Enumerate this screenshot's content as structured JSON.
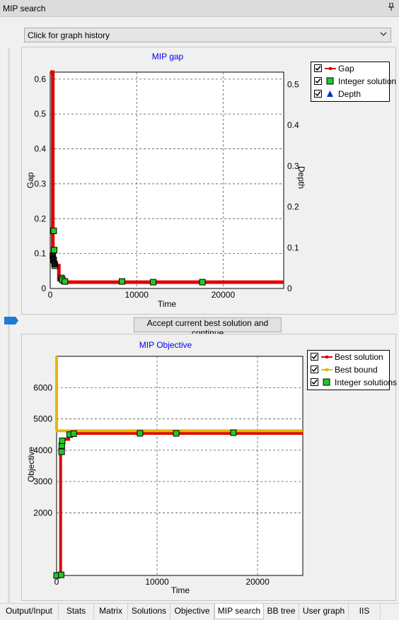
{
  "window": {
    "title": "MIP search",
    "pin_icon": "pin-icon"
  },
  "history_dropdown": {
    "label": "Click for graph history"
  },
  "accept_button": {
    "label": "Accept current best solution and continue"
  },
  "gap_chart": {
    "legend": [
      {
        "label": "Gap",
        "color": "#e00000",
        "symbol": "line-dot"
      },
      {
        "label": "Integer solution",
        "color": "#22c922",
        "symbol": "square"
      },
      {
        "label": "Depth",
        "color": "#0033cc",
        "symbol": "triangle"
      }
    ]
  },
  "objective_chart": {
    "legend": [
      {
        "label": "Best solution",
        "color": "#e00000",
        "symbol": "line-dot"
      },
      {
        "label": "Best bound",
        "color": "#e6b800",
        "symbol": "line-dot"
      },
      {
        "label": "Integer solutions",
        "color": "#22c922",
        "symbol": "square"
      }
    ]
  },
  "chart_data": [
    {
      "type": "line",
      "title": "MIP gap",
      "xlabel": "Time",
      "ylabel": "Gap",
      "y2label": "Depth",
      "xlim": [
        0,
        27000
      ],
      "ylim": [
        0,
        0.62
      ],
      "y2lim": [
        0,
        0.53
      ],
      "xticks": [
        "0",
        "10000",
        "20000"
      ],
      "xtick_values": [
        0,
        10000,
        20000
      ],
      "yticks": [
        "0",
        "0.1",
        "0.2",
        "0.3",
        "0.4",
        "0.5",
        "0.6"
      ],
      "ytick_values": [
        0,
        0.1,
        0.2,
        0.3,
        0.4,
        0.5,
        0.6
      ],
      "y2ticks": [
        "0",
        "0.1",
        "0.2",
        "0.3",
        "0.4",
        "0.5"
      ],
      "y2tick_values": [
        0,
        0.1,
        0.2,
        0.3,
        0.4,
        0.5
      ],
      "grid": true,
      "legend_position": "top-right",
      "series": [
        {
          "name": "Gap",
          "color": "#e00000",
          "x": [
            0,
            300,
            300,
            450,
            450,
            1000,
            1000,
            1400,
            1400,
            27000
          ],
          "y": [
            0.62,
            0.62,
            0.075,
            0.075,
            0.065,
            0.065,
            0.025,
            0.025,
            0.018,
            0.018
          ]
        },
        {
          "name": "Integer solution",
          "color": "#22c922",
          "x": [
            400,
            450,
            550,
            1300,
            1400,
            1700,
            8300,
            11900,
            17600
          ],
          "y": [
            0.165,
            0.11,
            0.065,
            0.03,
            0.025,
            0.02,
            0.02,
            0.018,
            0.018
          ]
        },
        {
          "name": "Depth",
          "color": "#0033cc",
          "x": [
            300,
            400,
            500
          ],
          "y": [
            0.08,
            0.07,
            0.06
          ]
        }
      ]
    },
    {
      "type": "line",
      "title": "MIP Objective",
      "xlabel": "Time",
      "ylabel": "Objective",
      "xlim": [
        0,
        24500
      ],
      "ylim": [
        0,
        7000
      ],
      "xticks": [
        "0",
        "10000",
        "20000"
      ],
      "xtick_values": [
        0,
        10000,
        20000
      ],
      "yticks": [
        "2000",
        "3000",
        "4000",
        "5000",
        "6000"
      ],
      "ytick_values": [
        2000,
        3000,
        4000,
        5000,
        6000
      ],
      "grid": true,
      "legend_position": "top-right",
      "series": [
        {
          "name": "Best solution",
          "color": "#e00000",
          "x": [
            0,
            400,
            400,
            450,
            450,
            600,
            600,
            1200,
            1200,
            1600,
            1600,
            24500
          ],
          "y": [
            0,
            0,
            4000,
            4000,
            4200,
            4200,
            4350,
            4350,
            4480,
            4480,
            4540,
            4540
          ]
        },
        {
          "name": "Best bound",
          "color": "#e6b800",
          "x": [
            0,
            0,
            50,
            24500
          ],
          "y": [
            7000,
            4650,
            4620,
            4620
          ]
        },
        {
          "name": "Integer solutions",
          "color": "#22c922",
          "x": [
            0,
            450,
            500,
            520,
            560,
            1300,
            1700,
            8300,
            11900,
            17600
          ],
          "y": [
            0,
            20,
            3950,
            4150,
            4300,
            4500,
            4530,
            4540,
            4540,
            4560
          ]
        }
      ]
    }
  ],
  "tabs": [
    {
      "label": "Output/Input",
      "active": false
    },
    {
      "label": "Stats",
      "active": false
    },
    {
      "label": "Matrix",
      "active": false
    },
    {
      "label": "Solutions",
      "active": false
    },
    {
      "label": "Objective",
      "active": false
    },
    {
      "label": "MIP search",
      "active": true
    },
    {
      "label": "BB tree",
      "active": false
    },
    {
      "label": "User graph",
      "active": false
    },
    {
      "label": "IIS",
      "active": false
    }
  ]
}
